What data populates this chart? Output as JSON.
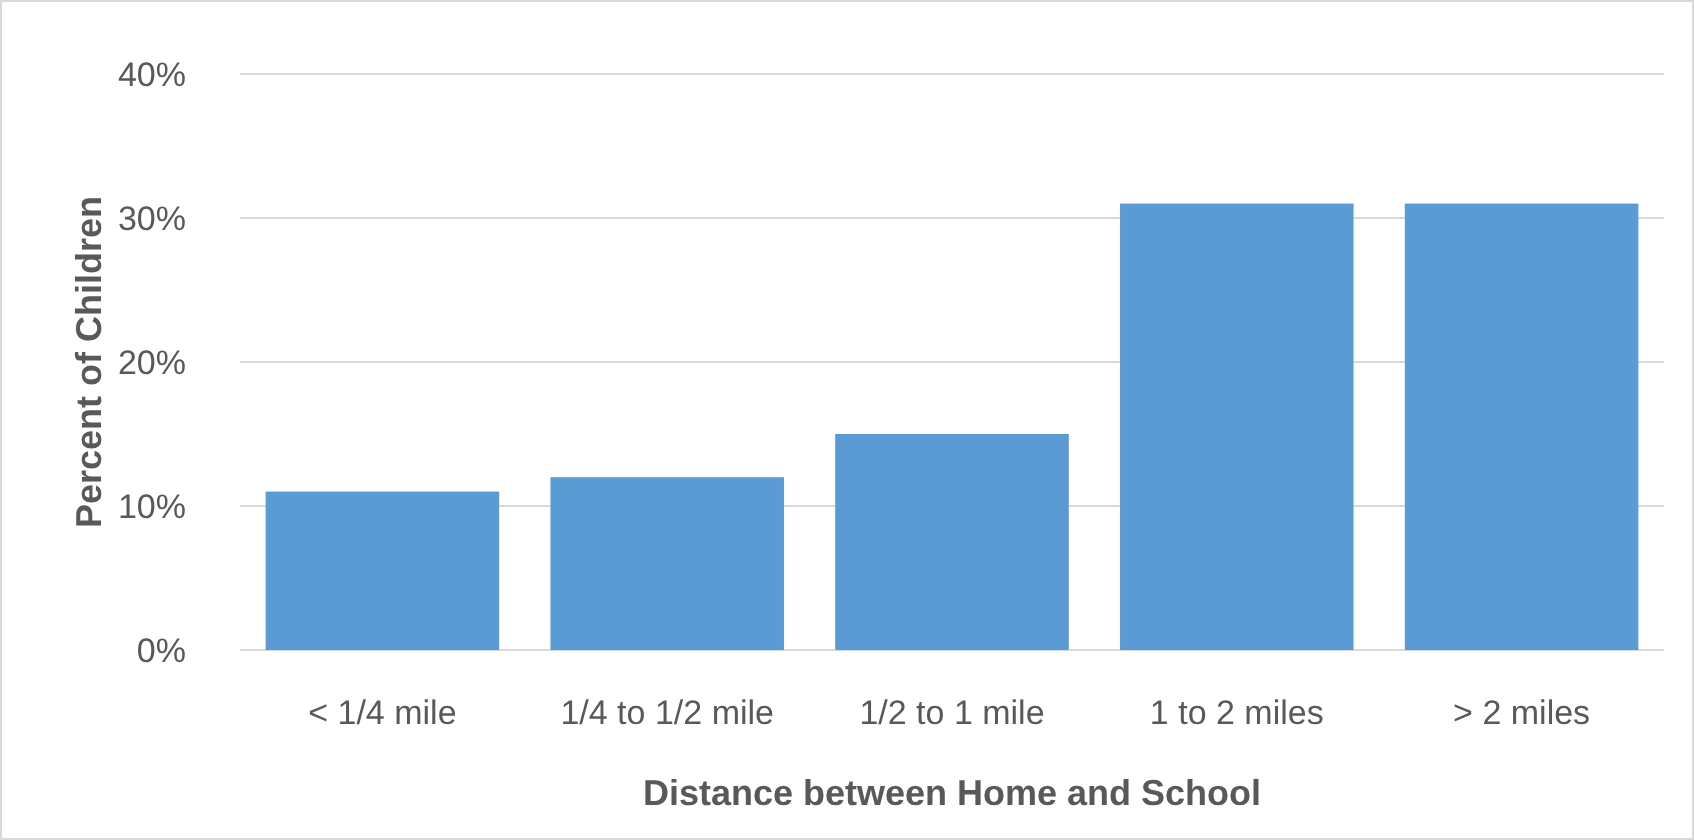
{
  "chart_data": {
    "type": "bar",
    "xlabel": "Distance between Home and School",
    "ylabel": "Percent of Children",
    "categories": [
      "< 1/4 mile",
      "1/4 to 1/2 mile",
      "1/2 to 1 mile",
      "1 to 2 miles",
      "> 2 miles"
    ],
    "values": [
      11,
      12,
      15,
      31,
      31
    ],
    "color": "#5b9bd5",
    "ylim": [
      0,
      40
    ],
    "yticks": [
      {
        "value": 0,
        "label": "0%"
      },
      {
        "value": 10,
        "label": "10%"
      },
      {
        "value": 20,
        "label": "20%"
      },
      {
        "value": 30,
        "label": "30%"
      },
      {
        "value": 40,
        "label": "40%"
      }
    ],
    "grid": "y"
  }
}
